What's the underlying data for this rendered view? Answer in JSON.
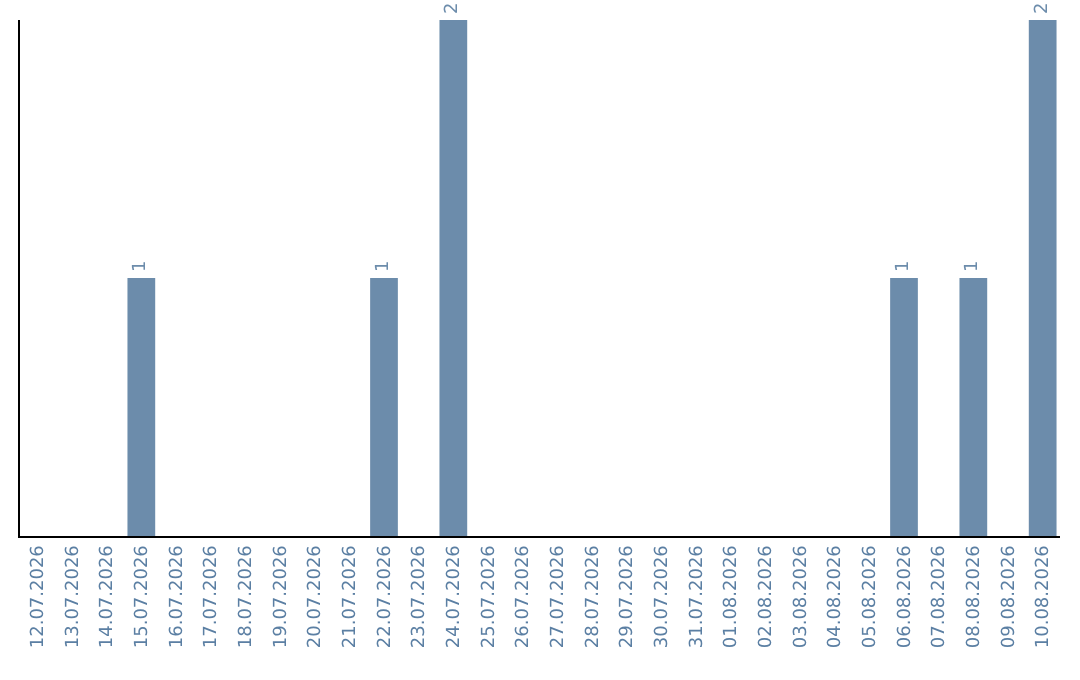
{
  "chart_data": {
    "type": "bar",
    "categories": [
      "12.07.2026",
      "13.07.2026",
      "14.07.2026",
      "15.07.2026",
      "16.07.2026",
      "17.07.2026",
      "18.07.2026",
      "19.07.2026",
      "20.07.2026",
      "21.07.2026",
      "22.07.2026",
      "23.07.2026",
      "24.07.2026",
      "25.07.2026",
      "26.07.2026",
      "27.07.2026",
      "28.07.2026",
      "29.07.2026",
      "30.07.2026",
      "31.07.2026",
      "01.08.2026",
      "02.08.2026",
      "03.08.2026",
      "04.08.2026",
      "05.08.2026",
      "06.08.2026",
      "07.08.2026",
      "08.08.2026",
      "09.08.2026",
      "10.08.2026"
    ],
    "values": [
      0,
      0,
      0,
      1,
      0,
      0,
      0,
      0,
      0,
      0,
      1,
      0,
      2,
      0,
      0,
      0,
      0,
      0,
      0,
      0,
      0,
      0,
      0,
      0,
      0,
      1,
      0,
      1,
      0,
      2
    ],
    "value_labels": [
      null,
      null,
      null,
      "1",
      null,
      null,
      null,
      null,
      null,
      null,
      "1",
      null,
      "2",
      null,
      null,
      null,
      null,
      null,
      null,
      null,
      null,
      null,
      null,
      null,
      null,
      "1",
      null,
      "1",
      null,
      "2"
    ],
    "color": "#6c8cab",
    "grid": false,
    "tick_labels": "x"
  }
}
